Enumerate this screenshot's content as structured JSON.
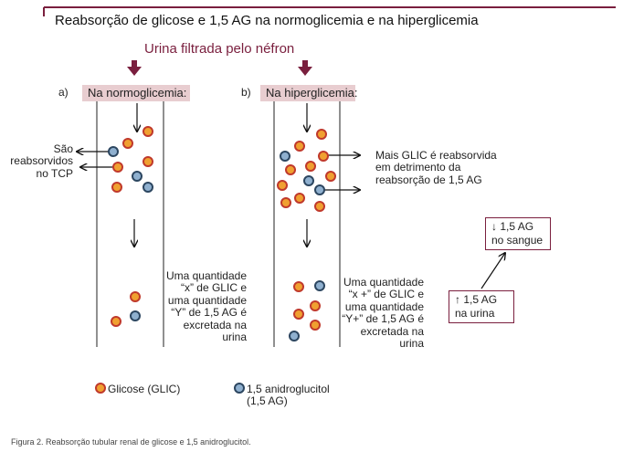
{
  "title": "Reabsorção de glicose e 1,5 AG na normoglicemia e na hiperglicemia",
  "urine_label": "Urina filtrada pelo néfron",
  "panel_a": {
    "marker": "a)",
    "heading": "Na normoglicemia:",
    "side_label": [
      "São",
      "reabsorvidos",
      "no TCP"
    ],
    "excretion_text": [
      "Uma quantidade",
      "“x” de GLIC e",
      "uma quantidade",
      "“Y” de 1,5 AG é",
      "excretada na",
      "urina"
    ]
  },
  "panel_b": {
    "marker": "b)",
    "heading": "Na hiperglicemia:",
    "side_label": [
      "Mais GLIC é reabsorvida",
      "em detrimento da",
      "reabsorção de 1,5 AG"
    ],
    "excretion_text": [
      "Uma quantidade",
      "“x +” de GLIC e",
      "uma quantidade",
      "“Y+” de 1,5 AG é",
      "excretada na",
      "urina"
    ],
    "urine_box": [
      "1,5 AG",
      "na urina"
    ],
    "blood_box": [
      "1,5 AG",
      "no sangue"
    ]
  },
  "legend": {
    "glucose": "Glicose (GLIC)",
    "ag": [
      "1,5 anidroglucitol",
      "(1,5 AG)"
    ]
  },
  "caption": "Figura 2. Reabsorção tubular renal de glicose e 1,5 anidroglucitol.",
  "colors": {
    "accent": "#7a1f3e",
    "banner": "#e8cdd0",
    "glucose_fill": "#f0a030",
    "glucose_ring": "#c0392b",
    "ag_fill": "#8fb0cf",
    "ag_ring": "#2c4660"
  }
}
